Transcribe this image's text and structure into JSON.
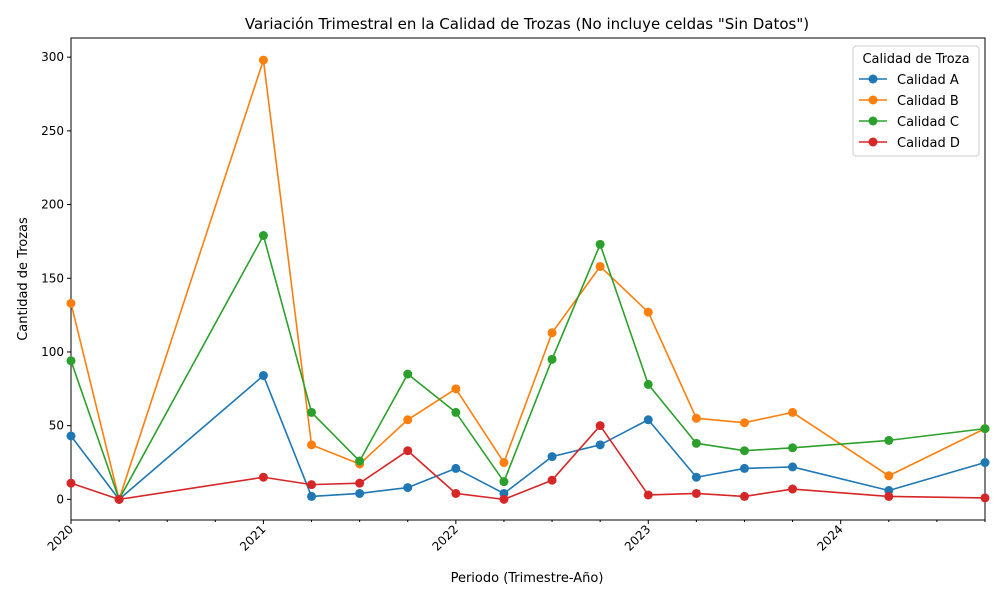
{
  "chart_data": {
    "type": "line",
    "title": "Variación Trimestral en la Calidad de Trozas (No incluye celdas \"Sin Datos\")",
    "xlabel": "Periodo (Trimestre-Año)",
    "ylabel": "Cantidad de Trozas",
    "x": [
      2020.0,
      2020.25,
      2021.0,
      2021.25,
      2021.5,
      2021.75,
      2022.0,
      2022.25,
      2022.5,
      2022.75,
      2023.0,
      2023.25,
      2023.5,
      2023.75,
      2024.25,
      2024.75
    ],
    "xlim": [
      2020.0,
      2024.75
    ],
    "x_major_ticks": [
      2020,
      2021,
      2022,
      2023,
      2024
    ],
    "x_tick_labels": [
      "2020",
      "2021",
      "2022",
      "2023",
      "2024"
    ],
    "ylim": [
      -14,
      313
    ],
    "y_ticks": [
      0,
      50,
      100,
      150,
      200,
      250,
      300
    ],
    "y_tick_labels": [
      "0",
      "50",
      "100",
      "150",
      "200",
      "250",
      "300"
    ],
    "grid": false,
    "legend": {
      "title": "Calidad de Troza",
      "placement": "top-right"
    },
    "series": [
      {
        "name": "Calidad A",
        "color": "#1f77b4",
        "values": [
          43,
          0,
          84,
          2,
          4,
          8,
          21,
          4,
          29,
          37,
          54,
          15,
          21,
          22,
          6,
          25
        ]
      },
      {
        "name": "Calidad B",
        "color": "#ff7f0e",
        "values": [
          133,
          0,
          298,
          37,
          24,
          54,
          75,
          25,
          113,
          158,
          127,
          55,
          52,
          59,
          16,
          48
        ]
      },
      {
        "name": "Calidad C",
        "color": "#2ca02c",
        "values": [
          94,
          0,
          179,
          59,
          26,
          85,
          59,
          12,
          95,
          173,
          78,
          38,
          33,
          35,
          40,
          48
        ]
      },
      {
        "name": "Calidad D",
        "color": "#d62728",
        "values": [
          11,
          0,
          15,
          10,
          11,
          33,
          4,
          0,
          13,
          50,
          3,
          4,
          2,
          7,
          2,
          1
        ]
      }
    ]
  }
}
